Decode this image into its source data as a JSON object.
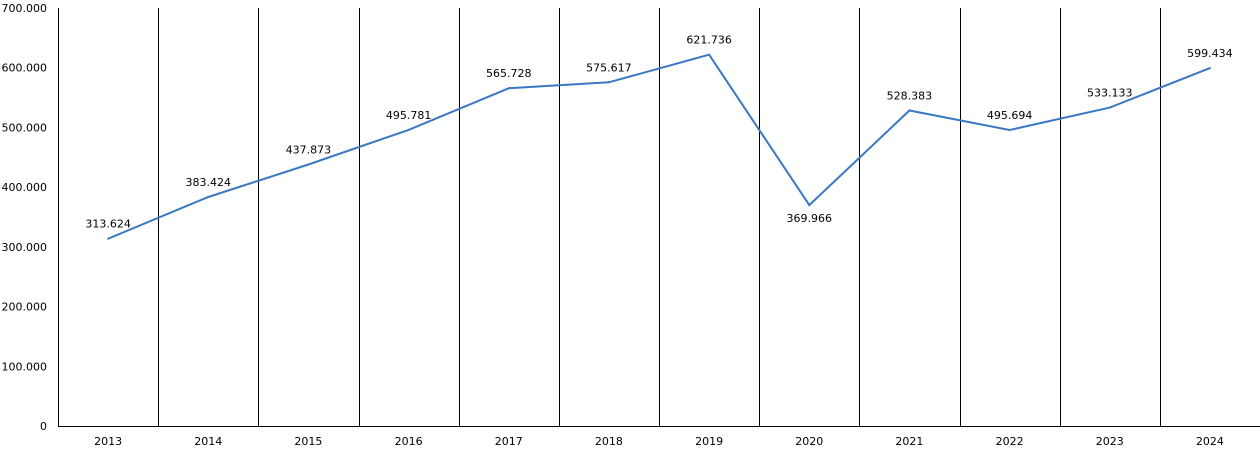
{
  "chart_data": {
    "type": "line",
    "title": "",
    "xlabel": "",
    "ylabel": "",
    "categories": [
      "2013",
      "2014",
      "2015",
      "2016",
      "2017",
      "2018",
      "2019",
      "2020",
      "2021",
      "2022",
      "2023",
      "2024"
    ],
    "series": [
      {
        "values": [
          313.624,
          383.424,
          437.873,
          495.781,
          565.728,
          575.617,
          621.736,
          369.966,
          528.383,
          495.694,
          533.133,
          599.434
        ],
        "value_labels": [
          "313.624",
          "383.424",
          "437.873",
          "495.781",
          "565.728",
          "575.617",
          "621.736",
          "369.966",
          "528.383",
          "495.694",
          "533.133",
          "599.434"
        ],
        "color": "#3a78c4"
      }
    ],
    "ylim": [
      0,
      700
    ],
    "yticks": [
      0,
      100,
      200,
      300,
      400,
      500,
      600,
      700
    ],
    "ytick_labels": [
      "0",
      "100.000",
      "200.000",
      "300.000",
      "400.000",
      "500.000",
      "600.000",
      "700.000"
    ],
    "grid": "vertical category separators",
    "legend": "none"
  }
}
